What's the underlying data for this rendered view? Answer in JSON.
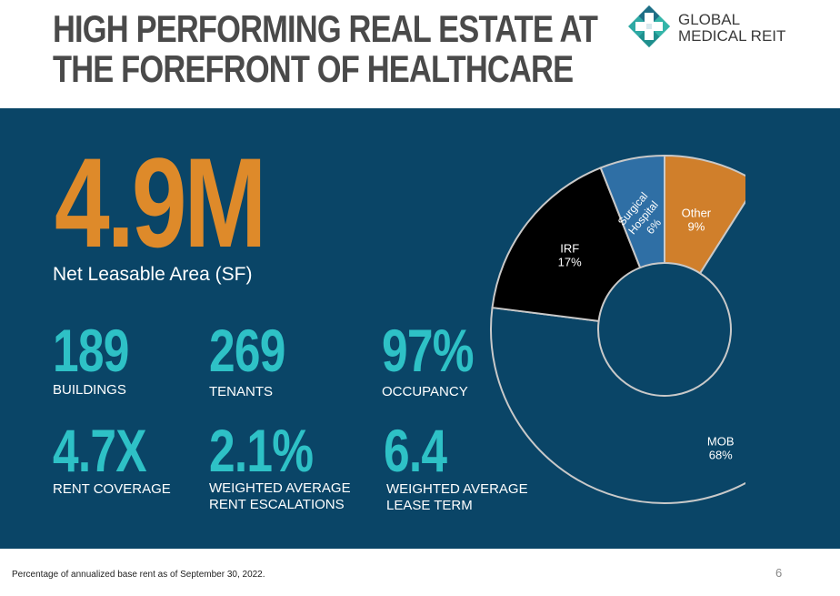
{
  "header": {
    "title_line1": "HIGH PERFORMING REAL ESTATE AT",
    "title_line2": "THE FOREFRONT OF HEALTHCARE"
  },
  "logo": {
    "line1": "GLOBAL",
    "line2": "MEDICAL REIT",
    "icon": "cross-logo-icon"
  },
  "headline_stat": {
    "value": "4.9M",
    "label": "Net Leasable Area (SF)"
  },
  "stats": {
    "buildings": {
      "value": "189",
      "label": "BUILDINGS"
    },
    "tenants": {
      "value": "269",
      "label": "TENANTS"
    },
    "occupancy": {
      "value": "97%",
      "label": "OCCUPANCY"
    },
    "rent_coverage": {
      "value": "4.7X",
      "label": "RENT COVERAGE"
    },
    "rent_escalations": {
      "value": "2.1%",
      "label_line1": "WEIGHTED AVERAGE",
      "label_line2": "RENT ESCALATIONS"
    },
    "lease_term": {
      "value": "6.4",
      "label_line1": "WEIGHTED AVERAGE",
      "label_line2": "LEASE TERM"
    }
  },
  "colors": {
    "title": "#4a4a4a",
    "panel": "#0a4567",
    "accent_orange": "#de8a2a",
    "accent_teal": "#2ec1c6"
  },
  "chart_data": {
    "type": "pie",
    "subtype": "donut",
    "start": "top, clockwise",
    "categories": [
      "MOB",
      "IRF",
      "Surgical Hospital",
      "Other"
    ],
    "values": [
      68,
      17,
      6,
      9
    ],
    "labels": [
      {
        "lines": [
          "MOB",
          "68%"
        ]
      },
      {
        "lines": [
          "IRF",
          "17%"
        ]
      },
      {
        "lines": [
          "Surgical",
          "Hospital",
          "6%"
        ]
      },
      {
        "lines": [
          "Other",
          "9%"
        ]
      }
    ],
    "colors": [
      "#0a4567",
      "#000000",
      "#2f6fa5",
      "#d07f2b"
    ],
    "unit": "%"
  },
  "footer": {
    "footnote": "Percentage of annualized base rent as of September 30, 2022.",
    "page_number": "6"
  }
}
